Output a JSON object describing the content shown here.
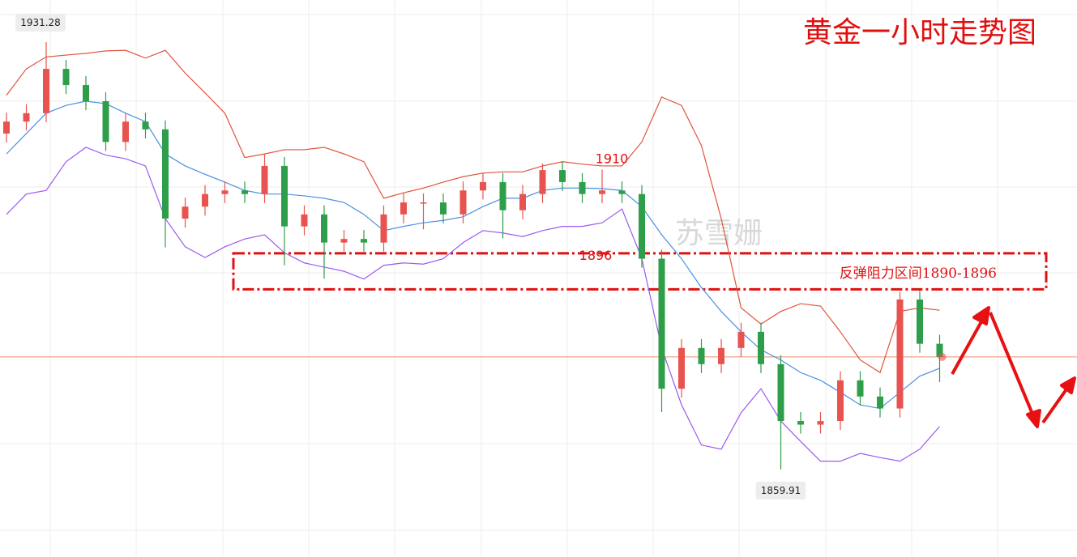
{
  "chart_data": {
    "type": "candlestick",
    "title": "黄金一小时走势图",
    "watermark": "苏雪姗",
    "ylim": [
      1845.3,
      1938.3
    ],
    "up_color": "#e8534f",
    "down_color": "#2e9e4a",
    "open": [
      1916.0,
      1918.0,
      1919.4,
      1926.8,
      1924.1,
      1921.4,
      1914.6,
      1918.0,
      1916.7,
      1901.8,
      1903.8,
      1905.9,
      1906.5,
      1905.9,
      1910.6,
      1900.5,
      1902.5,
      1897.8,
      1898.4,
      1897.8,
      1902.5,
      1904.5,
      1904.5,
      1902.5,
      1906.5,
      1907.9,
      1903.2,
      1905.9,
      1909.9,
      1907.9,
      1905.9,
      1906.5,
      1905.9,
      1895.1,
      1873.4,
      1880.2,
      1877.5,
      1880.2,
      1882.9,
      1877.5,
      1868.0,
      1867.4,
      1868.0,
      1874.8,
      1872.1,
      1870.1,
      1888.3,
      1880.9
    ],
    "high": [
      1919.5,
      1920.9,
      1931.28,
      1928.3,
      1925.6,
      1922.9,
      1919.5,
      1919.5,
      1918.2,
      1905.3,
      1907.4,
      1908.0,
      1908.0,
      1912.6,
      1912.1,
      1904.0,
      1904.0,
      1899.9,
      1899.9,
      1904.0,
      1906.0,
      1906.0,
      1906.0,
      1908.0,
      1909.4,
      1909.4,
      1907.4,
      1911.0,
      1911.4,
      1909.4,
      1910,
      1908.0,
      1907.4,
      1896.6,
      1881.7,
      1881.7,
      1881.7,
      1884.4,
      1884.4,
      1879.0,
      1869.5,
      1869.5,
      1876.3,
      1876.3,
      1873.6,
      1889.6,
      1889.8,
      1882.4
    ],
    "low": [
      1914.5,
      1916.5,
      1917.9,
      1922.6,
      1919.9,
      1913.1,
      1913.1,
      1915.2,
      1897.0,
      1900.3,
      1902.3,
      1904.4,
      1904.4,
      1904.4,
      1894.0,
      1899.0,
      1891.8,
      1896.3,
      1896.3,
      1896.3,
      1901.0,
      1900.0,
      1901.0,
      1901.0,
      1905.0,
      1898.5,
      1901.7,
      1904.4,
      1906.4,
      1904.4,
      1904.4,
      1904.4,
      1893.6,
      1869.5,
      1871.9,
      1876.0,
      1876.0,
      1878.7,
      1876.0,
      1859.91,
      1865.9,
      1865.9,
      1866.5,
      1870.6,
      1868.6,
      1868.6,
      1879.4,
      1874.5
    ],
    "close": [
      1918.0,
      1919.4,
      1926.8,
      1924.1,
      1921.4,
      1914.6,
      1918.0,
      1916.7,
      1901.8,
      1903.8,
      1905.9,
      1906.5,
      1905.9,
      1910.6,
      1900.5,
      1902.5,
      1897.8,
      1898.4,
      1897.8,
      1902.5,
      1904.5,
      1904.5,
      1902.5,
      1906.5,
      1907.9,
      1903.2,
      1905.9,
      1909.9,
      1907.9,
      1905.9,
      1906.5,
      1905.9,
      1895.1,
      1873.4,
      1880.2,
      1877.5,
      1880.2,
      1882.9,
      1877.5,
      1868.0,
      1867.4,
      1868.0,
      1874.8,
      1872.1,
      1870.1,
      1888.3,
      1880.9,
      1878.7
    ],
    "bands": [
      {
        "color": "#e0533e",
        "values": [
          1922.4,
          1926.8,
          1928.8,
          1929.1,
          1929.4,
          1929.8,
          1929.9,
          1928.6,
          1929.9,
          1926.1,
          1922.8,
          1919.4,
          1912.0,
          1912.6,
          1913.3,
          1913.3,
          1913.7,
          1912.6,
          1911.3,
          1905.2,
          1906.1,
          1906.9,
          1907.9,
          1908.8,
          1909.4,
          1909.6,
          1909.6,
          1910.6,
          1911.3,
          1910.9,
          1910.6,
          1910.6,
          1914.6,
          1922.1,
          1920.7,
          1914.0,
          1901.8,
          1886.9,
          1884.2,
          1886.3,
          1887.6,
          1887.2,
          1882.9,
          1878.2,
          1876.1,
          1886.3,
          1886.9,
          1886.5
        ]
      },
      {
        "color": "#4a90e2",
        "values": [
          1912.6,
          1916.0,
          1919.4,
          1920.7,
          1921.4,
          1921.0,
          1919.4,
          1918.0,
          1912.6,
          1910.6,
          1909.2,
          1907.9,
          1906.5,
          1905.9,
          1905.9,
          1905.6,
          1905.2,
          1904.5,
          1902.5,
          1899.8,
          1900.5,
          1901.1,
          1901.5,
          1902.1,
          1903.8,
          1905.2,
          1905.2,
          1906.5,
          1906.9,
          1906.9,
          1906.8,
          1906.5,
          1903.8,
          1899.1,
          1895.1,
          1890.3,
          1886.3,
          1882.9,
          1879.9,
          1878.2,
          1876.1,
          1874.8,
          1872.8,
          1870.7,
          1870.1,
          1872.8,
          1875.5,
          1876.8
        ]
      },
      {
        "color": "#9b59f0",
        "values": [
          1902.5,
          1905.9,
          1906.5,
          1911.3,
          1913.7,
          1912.4,
          1911.8,
          1910.6,
          1901.8,
          1897.1,
          1895.3,
          1897.1,
          1898.4,
          1899.1,
          1896.1,
          1894.4,
          1893.7,
          1893.0,
          1891.7,
          1894.0,
          1894.4,
          1894.2,
          1895.1,
          1897.8,
          1899.8,
          1899.4,
          1898.8,
          1899.8,
          1900.5,
          1900.5,
          1901.1,
          1903.4,
          1895.1,
          1880.2,
          1870.7,
          1864.0,
          1863.3,
          1869.4,
          1873.4,
          1868.0,
          1864.6,
          1861.3,
          1861.3,
          1862.6,
          1861.9,
          1861.3,
          1863.3,
          1867.1
        ]
      }
    ],
    "current_price": 1878.7,
    "current_price_color": "#f08a6a",
    "zone": {
      "label": "反弹阻力区间1890-1896",
      "range": [
        1890,
        1896
      ],
      "color": "#e01010"
    },
    "grid": true
  }
}
